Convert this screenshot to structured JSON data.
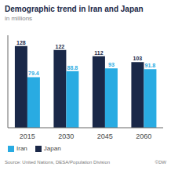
{
  "chart_data": {
    "type": "bar",
    "title": "Demographic trend in Iran and Japan",
    "subtitle": "in millions",
    "categories": [
      "2015",
      "2030",
      "2045",
      "2060"
    ],
    "series": [
      {
        "name": "Japan",
        "color": "#1a2848",
        "values": [
          128,
          122,
          112,
          103
        ]
      },
      {
        "name": "Iran",
        "color": "#29abe2",
        "values": [
          79.4,
          88.8,
          93,
          91.8
        ]
      }
    ],
    "ylim": [
      0,
      145
    ],
    "yticks": [],
    "tick_labels": "x",
    "grid": false,
    "legend": "bottom",
    "data_labels": true,
    "annotations": [
      "Source: United Nations, DESA/Population Division",
      "©DW"
    ]
  }
}
